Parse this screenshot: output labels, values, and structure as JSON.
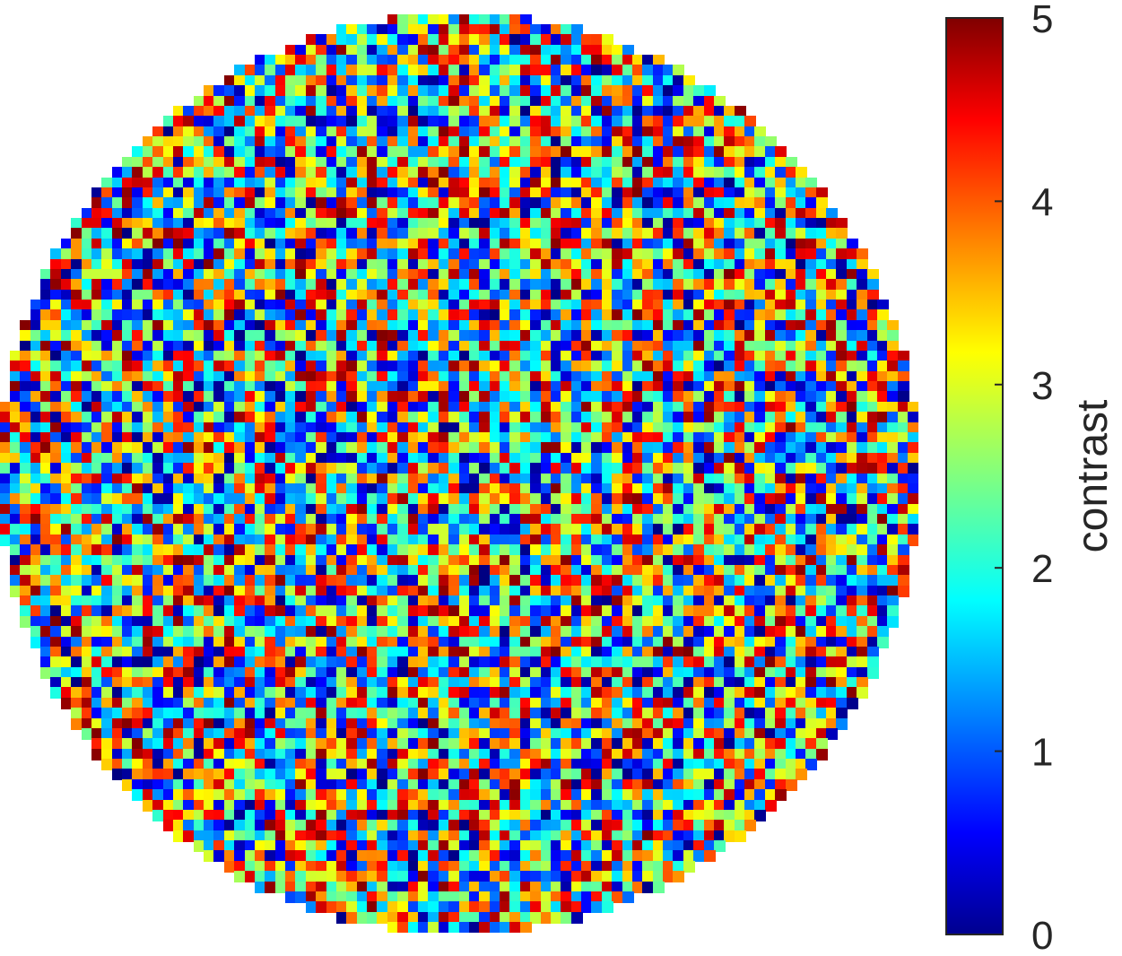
{
  "chart_data": {
    "type": "heatmap",
    "title": "",
    "xlabel": "",
    "ylabel": "",
    "mask": "circle",
    "grid_size": 90,
    "pattern": "random pixel values uniformly spanning the color range",
    "colormap": "jet",
    "grid": false,
    "colorbar": {
      "label": "contrast",
      "placement": "right",
      "range": [
        0,
        5
      ],
      "ticks": [
        0,
        1,
        2,
        3,
        4,
        5
      ],
      "tick_labels": [
        "0",
        "1",
        "2",
        "3",
        "4",
        "5"
      ]
    }
  }
}
